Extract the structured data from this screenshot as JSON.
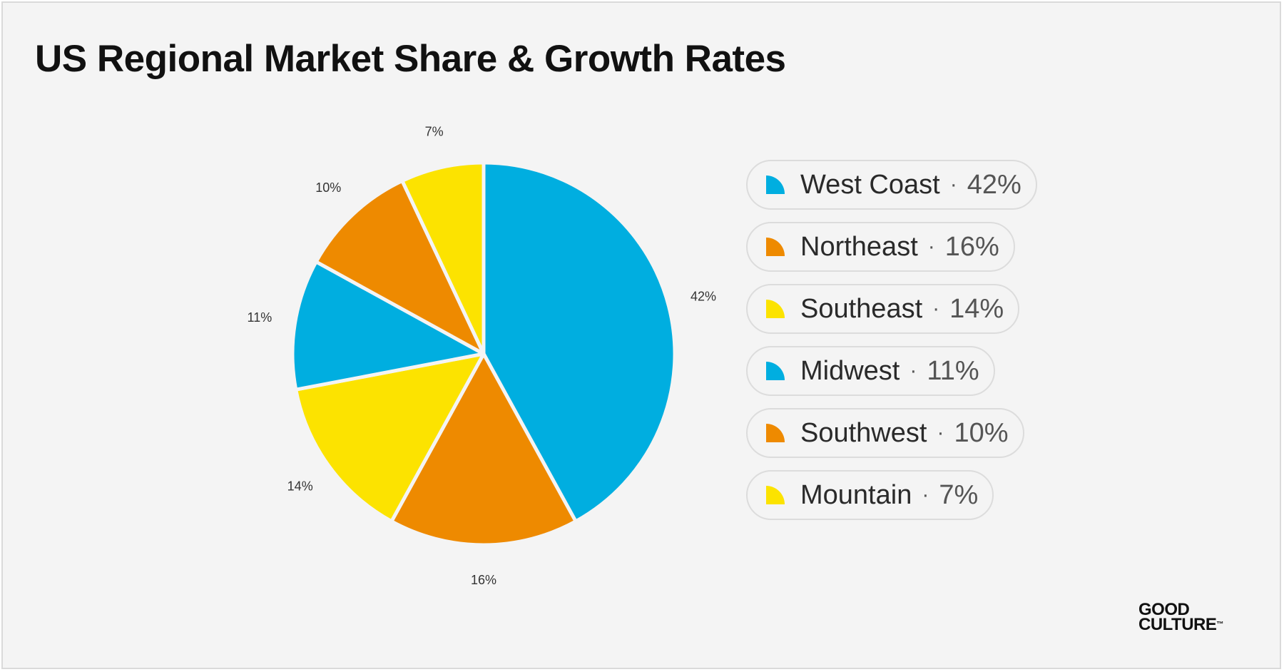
{
  "chart_data": {
    "type": "pie",
    "title": "US Regional Market Share & Growth Rates",
    "unit": "%",
    "slices": [
      {
        "label": "West Coast",
        "value": 42,
        "color": "#00aee0",
        "data_label": "42%"
      },
      {
        "label": "Northeast",
        "value": 16,
        "color": "#ee8a00",
        "data_label": "16%"
      },
      {
        "label": "Southeast",
        "value": 14,
        "color": "#fce300",
        "data_label": "14%"
      },
      {
        "label": "Midwest",
        "value": 11,
        "color": "#00aee0",
        "data_label": "11%"
      },
      {
        "label": "Southwest",
        "value": 10,
        "color": "#ee8a00",
        "data_label": "10%"
      },
      {
        "label": "Mountain",
        "value": 7,
        "color": "#fce300",
        "data_label": "7%"
      }
    ],
    "start_angle": "12 o'clock",
    "direction": "clockwise",
    "legend_placement": "right"
  },
  "legend": {
    "separator": "·",
    "items": [
      {
        "name": "West Coast",
        "value": "42%",
        "color": "#00aee0",
        "icon": "quarter-circle-icon"
      },
      {
        "name": "Northeast",
        "value": "16%",
        "color": "#ee8a00",
        "icon": "quarter-circle-icon"
      },
      {
        "name": "Southeast",
        "value": "14%",
        "color": "#fce300",
        "icon": "quarter-circle-icon"
      },
      {
        "name": "Midwest",
        "value": "11%",
        "color": "#00aee0",
        "icon": "quarter-circle-icon"
      },
      {
        "name": "Southwest",
        "value": "10%",
        "color": "#ee8a00",
        "icon": "quarter-circle-icon"
      },
      {
        "name": "Mountain",
        "value": "7%",
        "color": "#fce300",
        "icon": "quarter-circle-icon"
      }
    ]
  },
  "logo": {
    "line1": "GOOD",
    "line2": "CULTURE",
    "trademark": "™"
  },
  "colors": {
    "background": "#f4f4f4",
    "border": "#dadada",
    "text": "#111111"
  }
}
